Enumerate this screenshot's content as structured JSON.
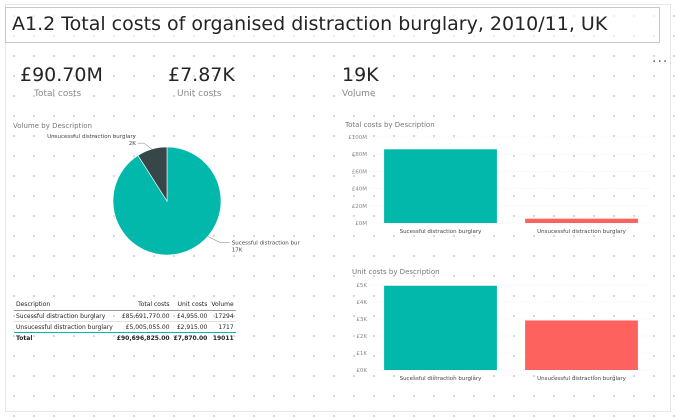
{
  "report": {
    "title": "A1.2 Total costs of organised distraction burglary, 2010/11, UK",
    "more_label": "..."
  },
  "cards": [
    {
      "value": "£90.70M",
      "label": "Total costs"
    },
    {
      "value": "£7.87K",
      "label": "Unit costs"
    },
    {
      "value": "19K",
      "label": "Volume"
    }
  ],
  "colors": {
    "teal": "#01b8aa",
    "dark": "#374649",
    "red": "#fd625e",
    "axis": "#888888"
  },
  "table": {
    "headers": [
      "Description",
      "Total costs",
      "Unit costs",
      "Volume"
    ],
    "rows": [
      [
        "Sucessful distraction burglary",
        "£85,691,770.00",
        "£4,955.00",
        "17294"
      ],
      [
        "Unsucessful distraction burglary",
        "£5,005,055.00",
        "£2,915.00",
        "1717"
      ]
    ],
    "total": [
      "Total",
      "£90,696,825.00",
      "£7,870.00",
      "19011"
    ]
  },
  "chart_data": [
    {
      "type": "pie",
      "title": "Volume by Description",
      "categories": [
        "Sucessful distraction burglary",
        "Unsucessful distraction burglary"
      ],
      "values": [
        17294,
        1717
      ],
      "data_labels": [
        "17K",
        "2K"
      ]
    },
    {
      "type": "bar",
      "title": "Total costs by Description",
      "categories": [
        "Sucessful distraction burglary",
        "Unsucessful distraction burglary"
      ],
      "values": [
        85691770,
        5005055
      ],
      "ylim": [
        0,
        100000000
      ],
      "yticks": [
        0,
        20000000,
        40000000,
        60000000,
        80000000,
        100000000
      ],
      "ytick_labels": [
        "£0M",
        "£20M",
        "£40M",
        "£60M",
        "£80M",
        "£100M"
      ]
    },
    {
      "type": "bar",
      "title": "Unit costs by Description",
      "categories": [
        "Sucessful distraction burglary",
        "Unsucessful distraction burglary"
      ],
      "values": [
        4955,
        2915
      ],
      "ylim": [
        0,
        5000
      ],
      "yticks": [
        0,
        1000,
        2000,
        3000,
        4000,
        5000
      ],
      "ytick_labels": [
        "£0K",
        "£1K",
        "£2K",
        "£3K",
        "£4K",
        "£5K"
      ]
    }
  ]
}
